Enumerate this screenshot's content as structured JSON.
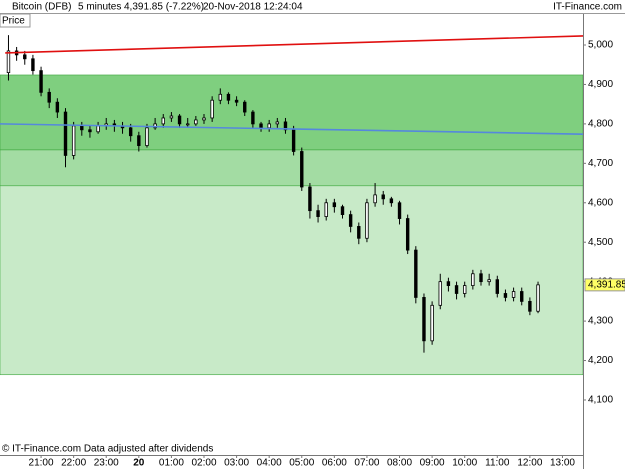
{
  "chart_data": {
    "type": "candlestick",
    "instrument": "Bitcoin (DFB)",
    "interval": "5 minutes",
    "price_change": "4,391.85 (-7.22%)",
    "timestamp": "20-Nov-2018 12:24:04",
    "source": "IT-Finance.com",
    "y_axis_label": "Price",
    "footer": "© IT-Finance.com  Data adjusted after dividends",
    "xlim": [
      19.74,
      37.63
    ],
    "ylim": [
      3960.5,
      5078.6
    ],
    "xticks": [
      {
        "value": 21,
        "label": "21:00"
      },
      {
        "value": 22,
        "label": "22:00"
      },
      {
        "value": 23,
        "label": "23:00"
      },
      {
        "value": 24,
        "label": "20"
      },
      {
        "value": 25,
        "label": "01:00"
      },
      {
        "value": 26,
        "label": "02:00"
      },
      {
        "value": 27,
        "label": "03:00"
      },
      {
        "value": 28,
        "label": "04:00"
      },
      {
        "value": 29,
        "label": "05:00"
      },
      {
        "value": 30,
        "label": "06:00"
      },
      {
        "value": 31,
        "label": "07:00"
      },
      {
        "value": 32,
        "label": "08:00"
      },
      {
        "value": 33,
        "label": "09:00"
      },
      {
        "value": 34,
        "label": "10:00"
      },
      {
        "value": 35,
        "label": "11:00"
      },
      {
        "value": 36,
        "label": "12:00"
      },
      {
        "value": 37,
        "label": "13:00"
      }
    ],
    "yticks": [
      {
        "value": 4100,
        "label": "4,100"
      },
      {
        "value": 4200,
        "label": "4,200"
      },
      {
        "value": 4300,
        "label": "4,300"
      },
      {
        "value": 4400,
        "label": "4,400"
      },
      {
        "value": 4500,
        "label": "4,500"
      },
      {
        "value": 4600,
        "label": "4,600"
      },
      {
        "value": 4700,
        "label": "4,700"
      },
      {
        "value": 4800,
        "label": "4,800"
      },
      {
        "value": 4900,
        "label": "4,900"
      },
      {
        "value": 5000,
        "label": "5,000"
      }
    ],
    "last_price": {
      "value": 4391.85,
      "label": "4,391.85"
    },
    "bands": [
      {
        "from": 4924,
        "to": 4734,
        "color": "#7fcf7f"
      },
      {
        "from": 4734,
        "to": 4643,
        "color": "#a3dca3"
      },
      {
        "from": 4643,
        "to": 4164,
        "color": "#c8eac8"
      }
    ],
    "lines": [
      {
        "x": [
          19.9,
          37.63
        ],
        "y": [
          4980,
          5023
        ],
        "color": "#e01010"
      },
      {
        "x": [
          19.74,
          37.63
        ],
        "y": [
          4800,
          4774
        ],
        "color": "#5588dd"
      }
    ],
    "x": [
      20,
      20.25,
      20.5,
      20.75,
      21,
      21.25,
      21.5,
      21.75,
      22,
      22.25,
      22.5,
      22.75,
      23,
      23.25,
      23.5,
      23.75,
      24,
      24.25,
      24.5,
      24.75,
      25,
      25.25,
      25.5,
      25.75,
      26,
      26.25,
      26.5,
      26.75,
      27,
      27.25,
      27.5,
      27.75,
      28,
      28.25,
      28.5,
      28.75,
      29,
      29.25,
      29.5,
      29.75,
      30,
      30.25,
      30.5,
      30.75,
      31,
      31.25,
      31.5,
      31.75,
      32,
      32.25,
      32.5,
      32.75,
      33,
      33.25,
      33.5,
      33.75,
      34,
      34.25,
      34.5,
      34.75,
      35,
      35.25,
      35.5,
      35.75,
      36,
      36.25
    ],
    "open": [
      4930,
      4985,
      4975,
      4965,
      4935,
      4880,
      4855,
      4830,
      4720,
      4795,
      4785,
      4780,
      4795,
      4800,
      4795,
      4790,
      4770,
      4745,
      4790,
      4800,
      4815,
      4820,
      4800,
      4800,
      4810,
      4815,
      4860,
      4875,
      4860,
      4855,
      4830,
      4800,
      4790,
      4800,
      4805,
      4785,
      4730,
      4640,
      4580,
      4565,
      4600,
      4590,
      4570,
      4540,
      4510,
      4600,
      4620,
      4610,
      4600,
      4560,
      4480,
      4360,
      4250,
      4340,
      4400,
      4390,
      4370,
      4390,
      4420,
      4400,
      4405,
      4370,
      4360,
      4375,
      4350,
      4325
    ],
    "high": [
      5025,
      4995,
      4985,
      4975,
      4945,
      4890,
      4865,
      4840,
      4805,
      4805,
      4795,
      4805,
      4815,
      4810,
      4805,
      4800,
      4780,
      4800,
      4815,
      4825,
      4830,
      4825,
      4815,
      4820,
      4825,
      4870,
      4890,
      4880,
      4870,
      4860,
      4835,
      4805,
      4810,
      4815,
      4815,
      4795,
      4740,
      4650,
      4595,
      4610,
      4610,
      4595,
      4580,
      4550,
      4610,
      4650,
      4630,
      4615,
      4605,
      4570,
      4490,
      4370,
      4350,
      4420,
      4410,
      4400,
      4400,
      4430,
      4430,
      4420,
      4415,
      4380,
      4385,
      4385,
      4360,
      4400
    ],
    "low": [
      4910,
      4960,
      4950,
      4925,
      4870,
      4840,
      4815,
      4690,
      4710,
      4770,
      4765,
      4775,
      4785,
      4780,
      4775,
      4755,
      4730,
      4740,
      4785,
      4790,
      4805,
      4790,
      4790,
      4795,
      4800,
      4805,
      4850,
      4850,
      4845,
      4820,
      4790,
      4780,
      4780,
      4790,
      4775,
      4720,
      4630,
      4560,
      4550,
      4555,
      4575,
      4560,
      4525,
      4495,
      4500,
      4590,
      4595,
      4590,
      4545,
      4470,
      4345,
      4220,
      4240,
      4330,
      4375,
      4355,
      4360,
      4380,
      4390,
      4390,
      4360,
      4350,
      4350,
      4340,
      4315,
      4320
    ],
    "close": [
      4985,
      4975,
      4965,
      4935,
      4880,
      4855,
      4830,
      4720,
      4795,
      4785,
      4780,
      4795,
      4800,
      4795,
      4790,
      4770,
      4745,
      4790,
      4800,
      4815,
      4820,
      4800,
      4800,
      4810,
      4815,
      4860,
      4875,
      4860,
      4855,
      4830,
      4800,
      4790,
      4800,
      4805,
      4785,
      4730,
      4640,
      4580,
      4565,
      4600,
      4590,
      4570,
      4540,
      4510,
      4600,
      4620,
      4610,
      4600,
      4560,
      4480,
      4360,
      4250,
      4340,
      4400,
      4390,
      4370,
      4390,
      4420,
      4400,
      4405,
      4370,
      4360,
      4375,
      4350,
      4325,
      4391.85
    ]
  }
}
